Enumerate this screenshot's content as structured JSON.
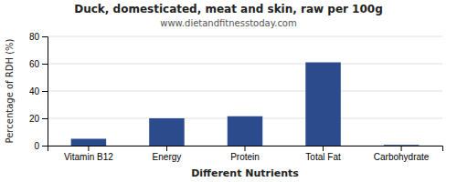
{
  "chart_data": {
    "type": "bar",
    "title": "Duck, domesticated, meat and skin, raw per 100g",
    "subtitle": "www.dietandfitnesstoday.com",
    "xlabel": "Different Nutrients",
    "ylabel": "Percentage of RDH (%)",
    "categories": [
      "Vitamin B12",
      "Energy",
      "Protein",
      "Total Fat",
      "Carbohydrate"
    ],
    "values": [
      5,
      20,
      21.5,
      61,
      0.5
    ],
    "color": "#2b4b8c",
    "ylim": [
      0,
      80
    ],
    "yticks": [
      0,
      20,
      40,
      60,
      80
    ],
    "grid": true
  }
}
